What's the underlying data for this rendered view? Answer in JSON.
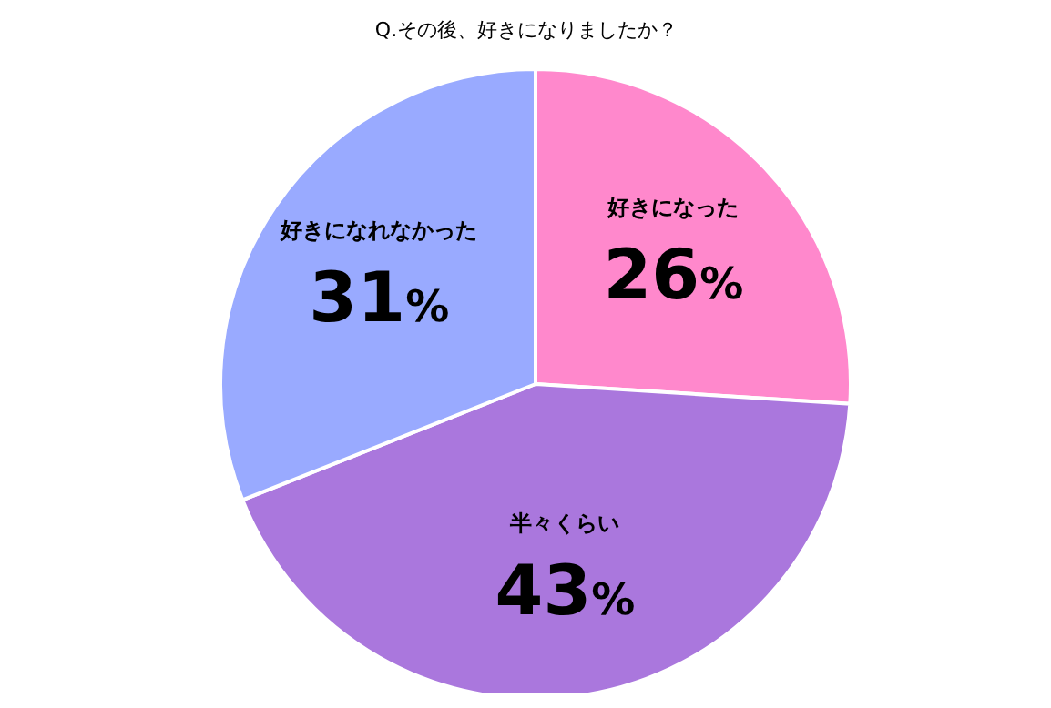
{
  "chart_data": {
    "type": "pie",
    "title": "Q.その後、好きになりましたか？",
    "categories": [
      "好きになった",
      "半々くらい",
      "好きになれなかった"
    ],
    "values": [
      26,
      43,
      31
    ],
    "colors": [
      "#ff88cc",
      "#aa77dd",
      "#99aaff"
    ],
    "value_labels": [
      "26%",
      "43%",
      "31%"
    ],
    "legend": false
  }
}
